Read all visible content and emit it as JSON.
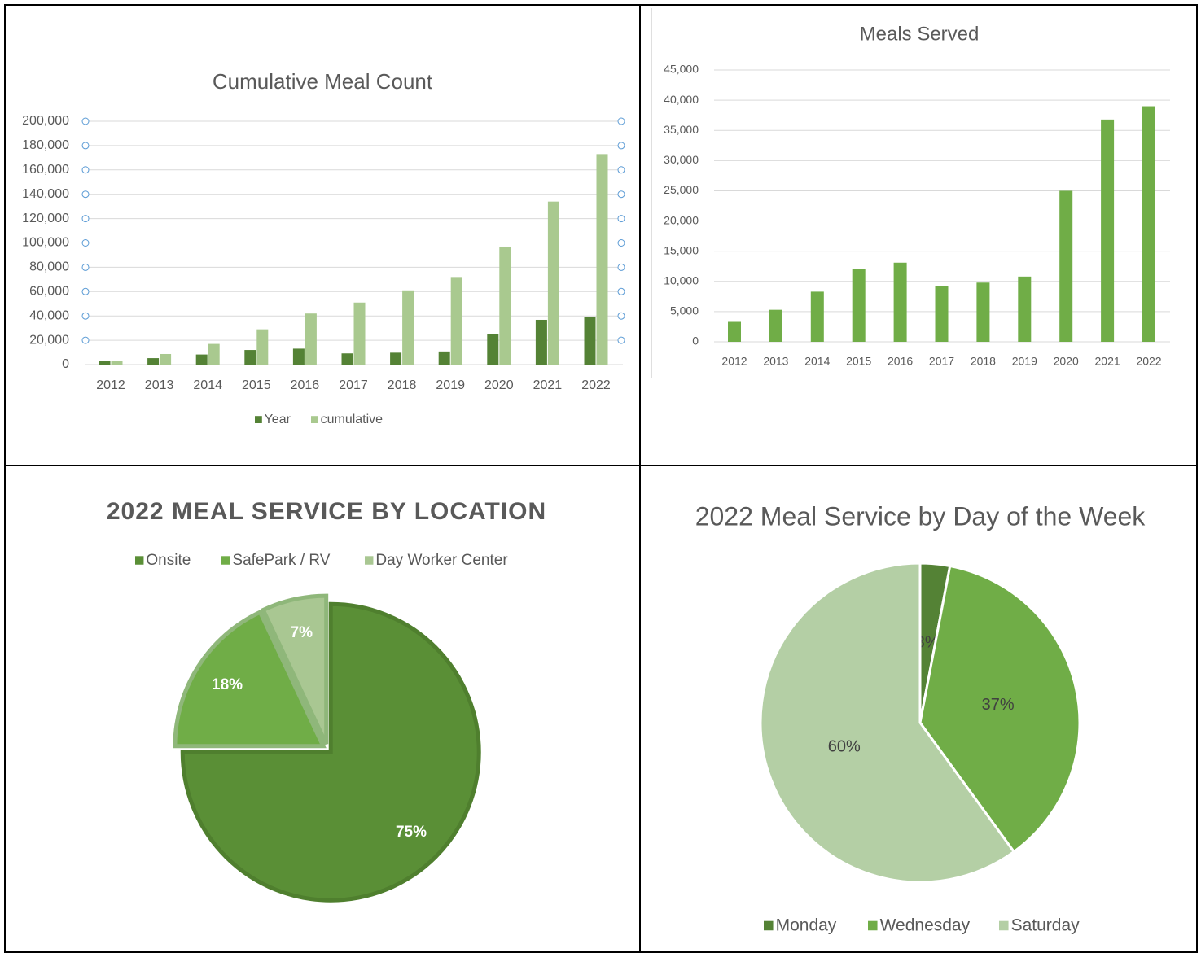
{
  "chart_data": [
    {
      "type": "bar",
      "title": "Cumulative Meal Count",
      "categories": [
        "2012",
        "2013",
        "2014",
        "2015",
        "2016",
        "2017",
        "2018",
        "2019",
        "2020",
        "2021",
        "2022"
      ],
      "series": [
        {
          "name": "Year",
          "color": "#548235",
          "values": [
            3300,
            5300,
            8300,
            12000,
            13100,
            9200,
            9800,
            10800,
            25000,
            36800,
            39000
          ]
        },
        {
          "name": "cumulative",
          "color": "#a9c98f",
          "values": [
            3300,
            8700,
            17000,
            29000,
            42000,
            51000,
            61000,
            72000,
            97000,
            134000,
            173000
          ]
        }
      ],
      "ylim": [
        0,
        200000
      ],
      "yticks": [
        0,
        {
          "value": 20000,
          "label": "20,000"
        },
        {
          "value": 40000,
          "label": "40,000"
        },
        {
          "value": 60000,
          "label": "60,000"
        },
        {
          "value": 80000,
          "label": "80,000"
        },
        {
          "value": 100000,
          "label": "100,000"
        },
        {
          "value": 120000,
          "label": "120,000"
        },
        {
          "value": 140000,
          "label": "140,000"
        },
        {
          "value": 160000,
          "label": "160,000"
        },
        {
          "value": 180000,
          "label": "180,000"
        },
        {
          "value": 200000,
          "label": "200,000"
        }
      ],
      "grid": true,
      "legend": "bottom"
    },
    {
      "type": "bar",
      "title": "Meals Served",
      "categories": [
        "2012",
        "2013",
        "2014",
        "2015",
        "2016",
        "2017",
        "2018",
        "2019",
        "2020",
        "2021",
        "2022"
      ],
      "values": [
        3300,
        5300,
        8300,
        12000,
        13100,
        9200,
        9800,
        10800,
        25000,
        36800,
        39000
      ],
      "color": "#70ad47",
      "ylim": [
        0,
        45000
      ],
      "yticks": [
        0,
        {
          "value": 5000,
          "label": "5,000"
        },
        {
          "value": 10000,
          "label": "10,000"
        },
        {
          "value": 15000,
          "label": "15,000"
        },
        {
          "value": 20000,
          "label": "20,000"
        },
        {
          "value": 25000,
          "label": "25,000"
        },
        {
          "value": 30000,
          "label": "30,000"
        },
        {
          "value": 35000,
          "label": "35,000"
        },
        {
          "value": 40000,
          "label": "40,000"
        },
        {
          "value": 45000,
          "label": "45,000"
        }
      ],
      "grid": true
    },
    {
      "type": "pie",
      "title": "2022 MEAL SERVICE BY LOCATION",
      "categories": [
        "Onsite",
        "SafePark / RV",
        "Day Worker Center"
      ],
      "values": [
        75,
        18,
        7
      ],
      "value_labels": [
        "75%",
        "18%",
        "7%"
      ],
      "colors": [
        "#5a8f36",
        "#70ad47",
        "#a9c792"
      ],
      "legend": "top"
    },
    {
      "type": "pie",
      "title": "2022 Meal Service by Day of the Week",
      "categories": [
        "Monday",
        "Wednesday",
        "Saturday"
      ],
      "values": [
        3,
        37,
        60
      ],
      "value_labels": [
        "3%",
        "37%",
        "60%"
      ],
      "colors": [
        "#548235",
        "#70ad47",
        "#b4cfa5"
      ],
      "legend": "bottom"
    }
  ]
}
